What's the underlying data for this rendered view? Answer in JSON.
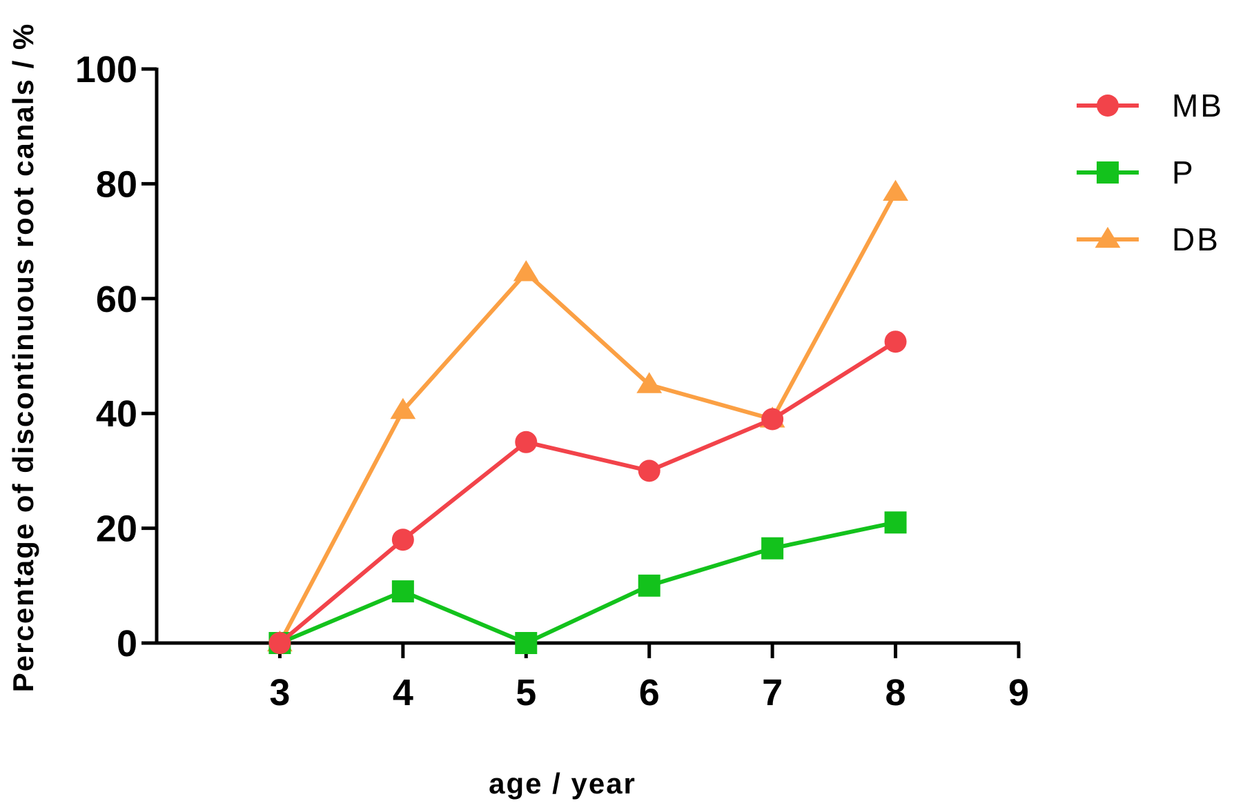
{
  "chart_data": {
    "type": "line",
    "xlabel": "age / year",
    "ylabel": "Percentage of discontinuous root canals / %",
    "xlim": [
      2,
      9
    ],
    "ylim": [
      0,
      100
    ],
    "x_ticks": [
      3,
      4,
      5,
      6,
      7,
      8,
      9
    ],
    "y_ticks": [
      0,
      20,
      40,
      60,
      80,
      100
    ],
    "legend_position": "top-right",
    "x": [
      3,
      4,
      5,
      6,
      7,
      8
    ],
    "series": [
      {
        "name": "MB",
        "color": "#f2434a",
        "marker": "circle",
        "values": [
          0,
          18,
          35,
          30,
          39,
          52.5
        ]
      },
      {
        "name": "P",
        "color": "#13c21c",
        "marker": "square",
        "values": [
          0,
          9,
          0,
          10,
          16.5,
          21
        ]
      },
      {
        "name": "DB",
        "color": "#fba044",
        "marker": "triangle",
        "values": [
          0,
          40.5,
          64.5,
          45,
          39,
          78.5
        ]
      }
    ]
  }
}
